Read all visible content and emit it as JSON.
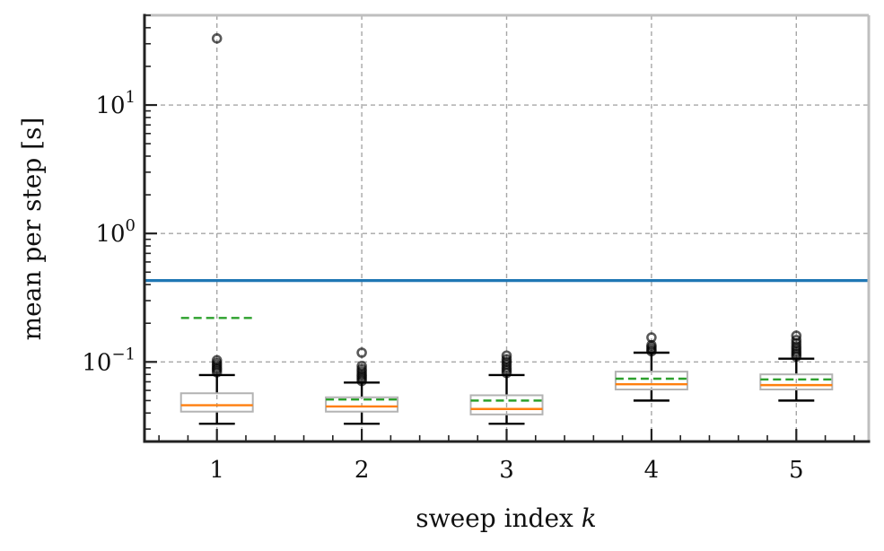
{
  "chart_data": {
    "type": "box",
    "title": "",
    "xlabel": "sweep index",
    "xlabel_var": "k",
    "ylabel": "mean per step [s]",
    "yscale": "log",
    "ylim": [
      0.024,
      50
    ],
    "xlim": [
      0.5,
      5.5
    ],
    "grid": true,
    "legend": "none",
    "categories": [
      "1",
      "2",
      "3",
      "4",
      "5"
    ],
    "x_tick_labels": [
      "1",
      "2",
      "3",
      "4",
      "5"
    ],
    "y_tick_labels": [
      {
        "base": "10",
        "exp": "−1",
        "value": 0.1
      },
      {
        "base": "10",
        "exp": "0",
        "value": 1
      },
      {
        "base": "10",
        "exp": "1",
        "value": 10
      }
    ],
    "reference_line": {
      "y": 0.43,
      "color": "#1f77b4"
    },
    "boxes": [
      {
        "x": 1,
        "whisker_low": 0.033,
        "q1": 0.041,
        "median": 0.046,
        "q3": 0.057,
        "whisker_high": 0.079,
        "mean": 0.22,
        "outliers": [
          0.083,
          0.087,
          0.09,
          0.094,
          0.098,
          0.103,
          33
        ]
      },
      {
        "x": 2,
        "whisker_low": 0.033,
        "q1": 0.041,
        "median": 0.045,
        "q3": 0.053,
        "whisker_high": 0.069,
        "mean": 0.051,
        "outliers": [
          0.071,
          0.074,
          0.077,
          0.08,
          0.084,
          0.088,
          0.093,
          0.118
        ]
      },
      {
        "x": 3,
        "whisker_low": 0.033,
        "q1": 0.039,
        "median": 0.043,
        "q3": 0.055,
        "whisker_high": 0.079,
        "mean": 0.05,
        "outliers": [
          0.082,
          0.086,
          0.09,
          0.095,
          0.1,
          0.105,
          0.112
        ]
      },
      {
        "x": 4,
        "whisker_low": 0.05,
        "q1": 0.061,
        "median": 0.067,
        "q3": 0.084,
        "whisker_high": 0.118,
        "mean": 0.074,
        "outliers": [
          0.121,
          0.125,
          0.13,
          0.135,
          0.155
        ]
      },
      {
        "x": 5,
        "whisker_low": 0.05,
        "q1": 0.061,
        "median": 0.066,
        "q3": 0.08,
        "whisker_high": 0.106,
        "mean": 0.073,
        "outliers": [
          0.11,
          0.115,
          0.12,
          0.126,
          0.132,
          0.14,
          0.148,
          0.16
        ]
      }
    ],
    "colors": {
      "box": "#b3b3b3",
      "median": "#ff7f0e",
      "mean": "#2ca02c",
      "whisker": "#000000",
      "flier": "#000000",
      "reference": "#1f77b4",
      "grid": "#a6a6a6",
      "spine_dark": "#222222",
      "spine_light": "#bfbfbf"
    }
  }
}
